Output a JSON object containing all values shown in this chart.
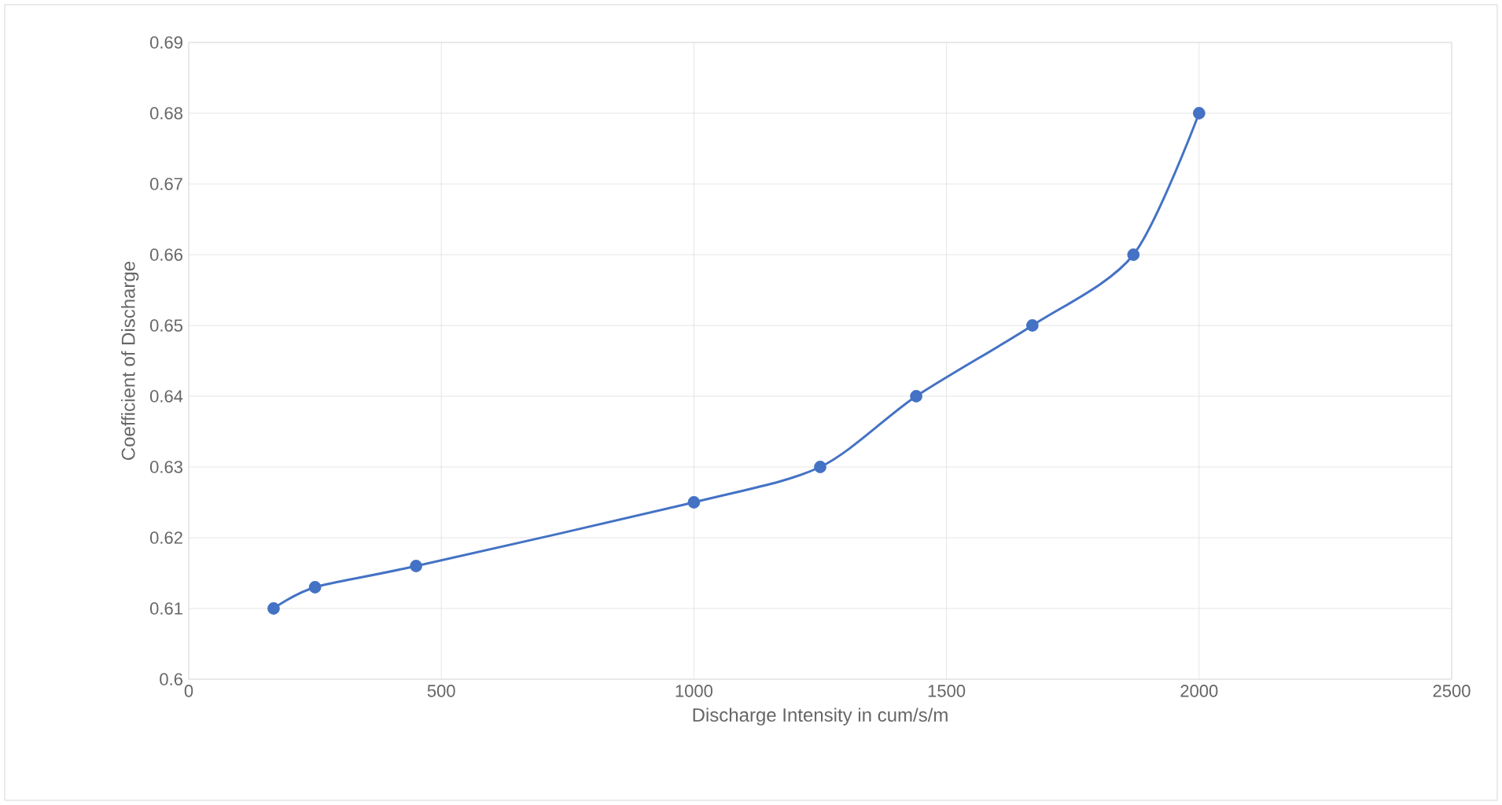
{
  "chart_data": {
    "type": "line",
    "xlabel": "Discharge Intensity in cum/s/m",
    "ylabel": "Coefficient of Discharge",
    "x": [
      168,
      250,
      450,
      1000,
      1250,
      1440,
      1670,
      1870,
      2000
    ],
    "series": [
      {
        "color": "#4472c4",
        "values": [
          0.61,
          0.613,
          0.616,
          0.625,
          0.63,
          0.64,
          0.65,
          0.66,
          0.68
        ]
      }
    ],
    "xlim": [
      0,
      2500
    ],
    "xticks": [
      0,
      500,
      1000,
      1500,
      2000,
      2500
    ],
    "ylim": [
      0.6,
      0.69
    ],
    "yticks": [
      0.6,
      0.61,
      0.62,
      0.63,
      0.64,
      0.65,
      0.66,
      0.67,
      0.68,
      0.69
    ],
    "grid": true,
    "marker": "circle",
    "line_style": "solid"
  }
}
